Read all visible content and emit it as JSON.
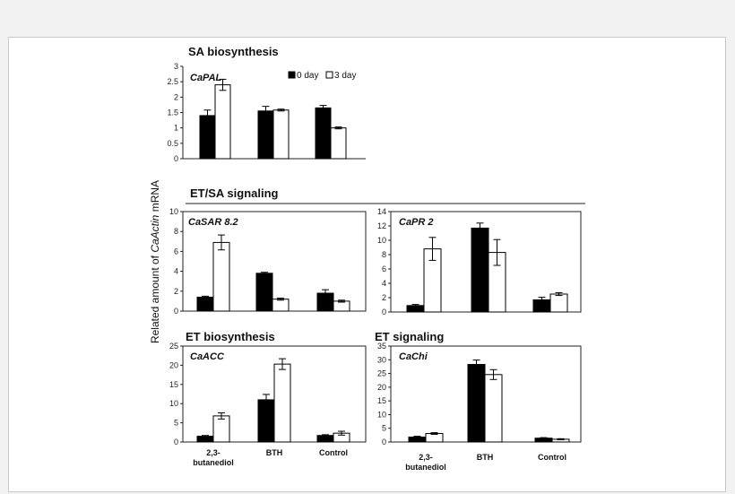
{
  "figure": {
    "y_axis_label_prefix": "Related amount of ",
    "y_axis_label_italic": "CaActin",
    "y_axis_label_suffix": " mRNA",
    "section_titles": [
      "SA biosynthesis",
      "ET/SA signaling",
      "ET biosynthesis",
      "ET signaling"
    ],
    "legend": [
      "0 day",
      "3 day"
    ],
    "colors": {
      "day0": "#000000",
      "day3": "#ffffff",
      "axis": "#222222",
      "frame_border": "#c9c9c9",
      "background": "#f2f2f2"
    }
  },
  "chart_data": [
    {
      "id": "capal",
      "type": "bar",
      "title": "CaPAL",
      "section": "SA biosynthesis",
      "categories": [
        "2,3-butanediol",
        "BTH",
        "Control"
      ],
      "ylim": [
        0,
        3
      ],
      "yticks": [
        0,
        0.5,
        1,
        1.5,
        2,
        2.5,
        3
      ],
      "series": [
        {
          "name": "0 day",
          "values": [
            1.4,
            1.55,
            1.65
          ],
          "errors": [
            0.18,
            0.15,
            0.08
          ]
        },
        {
          "name": "3 day",
          "values": [
            2.4,
            1.58,
            1.0
          ],
          "errors": [
            0.18,
            0.03,
            0.03
          ]
        }
      ]
    },
    {
      "id": "casar",
      "type": "bar",
      "title": "CaSAR 8.2",
      "section": "ET/SA signaling",
      "categories": [
        "2,3-butanediol",
        "BTH",
        "Control"
      ],
      "ylim": [
        0,
        10
      ],
      "yticks": [
        0,
        2,
        4,
        6,
        8,
        10
      ],
      "series": [
        {
          "name": "0 day",
          "values": [
            1.4,
            3.8,
            1.8
          ],
          "errors": [
            0.1,
            0.1,
            0.35
          ]
        },
        {
          "name": "3 day",
          "values": [
            6.9,
            1.2,
            1.0
          ],
          "errors": [
            0.75,
            0.1,
            0.1
          ]
        }
      ]
    },
    {
      "id": "capr2",
      "type": "bar",
      "title": "CaPR 2",
      "section": "ET/SA signaling",
      "categories": [
        "2,3-butanediol",
        "BTH",
        "Control"
      ],
      "ylim": [
        0,
        14
      ],
      "yticks": [
        0,
        2,
        4,
        6,
        8,
        10,
        12,
        14
      ],
      "series": [
        {
          "name": "0 day",
          "values": [
            0.9,
            11.7,
            1.7
          ],
          "errors": [
            0.15,
            0.7,
            0.35
          ]
        },
        {
          "name": "3 day",
          "values": [
            8.8,
            8.3,
            2.5
          ],
          "errors": [
            1.6,
            1.8,
            0.2
          ]
        }
      ]
    },
    {
      "id": "caacc",
      "type": "bar",
      "title": "CaACC",
      "section": "ET biosynthesis",
      "categories": [
        "2,3-butanediol",
        "BTH",
        "Control"
      ],
      "ylim": [
        0,
        25
      ],
      "yticks": [
        0,
        5,
        10,
        15,
        20,
        25
      ],
      "series": [
        {
          "name": "0 day",
          "values": [
            1.5,
            11.0,
            1.7
          ],
          "errors": [
            0.2,
            1.4,
            0.2
          ]
        },
        {
          "name": "3 day",
          "values": [
            6.8,
            20.3,
            2.3
          ],
          "errors": [
            0.8,
            1.4,
            0.5
          ]
        }
      ]
    },
    {
      "id": "cachi",
      "type": "bar",
      "title": "CaChi",
      "section": "ET signaling",
      "categories": [
        "2,3-butanediol",
        "BTH",
        "Control"
      ],
      "ylim": [
        0,
        35
      ],
      "yticks": [
        0,
        5,
        10,
        15,
        20,
        25,
        30,
        35
      ],
      "series": [
        {
          "name": "0 day",
          "values": [
            1.8,
            28.3,
            1.4
          ],
          "errors": [
            0.3,
            1.6,
            0.2
          ]
        },
        {
          "name": "3 day",
          "values": [
            3.1,
            24.6,
            1.0
          ],
          "errors": [
            0.3,
            1.8,
            0.2
          ]
        }
      ]
    }
  ]
}
